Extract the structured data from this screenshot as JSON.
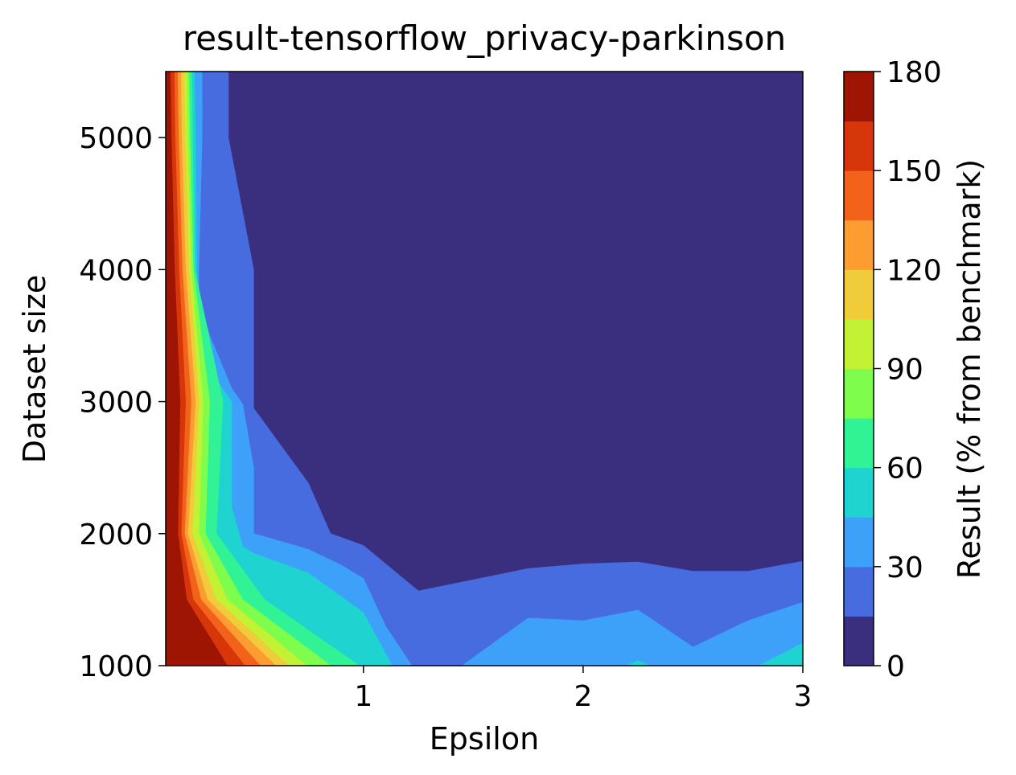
{
  "chart_data": {
    "type": "heatmap",
    "subtype": "filled-contour",
    "title": "result-tensorflow_privacy-parkinson",
    "xlabel": "Epsilon",
    "ylabel": "Dataset size",
    "xlim": [
      0.1,
      3.0
    ],
    "ylim": [
      1000,
      5500
    ],
    "x_ticks": [
      1,
      2,
      3
    ],
    "y_ticks": [
      1000,
      2000,
      3000,
      4000,
      5000
    ],
    "grid": false,
    "colorbar": {
      "label": "Result (% from benchmark)",
      "range": [
        0,
        180
      ],
      "ticks": [
        0,
        30,
        60,
        90,
        120,
        150,
        180
      ],
      "levels": [
        0,
        15,
        30,
        45,
        60,
        75,
        90,
        105,
        120,
        135,
        150,
        165,
        180
      ],
      "colors": [
        "#3a2e7f",
        "#466ce0",
        "#3da1fa",
        "#1fd3d0",
        "#32f296",
        "#7ffd4d",
        "#c3f134",
        "#f0cb3a",
        "#fd9d31",
        "#f3621b",
        "#d6360a",
        "#9e1503"
      ]
    },
    "contour_boundaries": [
      {
        "level": 15,
        "points": [
          [
            0.385,
            5500
          ],
          [
            0.385,
            5000
          ],
          [
            0.5,
            4000
          ],
          [
            0.5,
            2950
          ],
          [
            0.75,
            2380
          ],
          [
            0.85,
            2000
          ],
          [
            1.0,
            1910
          ],
          [
            1.25,
            1565
          ],
          [
            1.5,
            1650
          ],
          [
            1.75,
            1735
          ],
          [
            2.0,
            1770
          ],
          [
            2.25,
            1785
          ],
          [
            2.5,
            1715
          ],
          [
            2.75,
            1715
          ],
          [
            3.0,
            1790
          ]
        ]
      },
      {
        "level": 30,
        "points": [
          [
            0.265,
            5500
          ],
          [
            0.265,
            5000
          ],
          [
            0.25,
            4000
          ],
          [
            0.25,
            3800
          ],
          [
            0.3,
            3500
          ],
          [
            0.35,
            3300
          ],
          [
            0.4,
            3100
          ],
          [
            0.45,
            2980
          ],
          [
            0.5,
            2500
          ],
          [
            0.5,
            2000
          ],
          [
            0.75,
            1880
          ],
          [
            0.9,
            1760
          ],
          [
            1.0,
            1660
          ],
          [
            1.1,
            1300
          ],
          [
            1.22,
            1000
          ]
        ]
      },
      {
        "level": 45,
        "points": [
          [
            0.23,
            5500
          ],
          [
            0.235,
            5000
          ],
          [
            0.24,
            4000
          ],
          [
            0.27,
            3300
          ],
          [
            0.4,
            3000
          ],
          [
            0.4,
            2200
          ],
          [
            0.45,
            1900
          ],
          [
            0.5,
            1850
          ],
          [
            0.75,
            1700
          ],
          [
            1.0,
            1400
          ],
          [
            1.13,
            1000
          ]
        ]
      }
    ]
  }
}
